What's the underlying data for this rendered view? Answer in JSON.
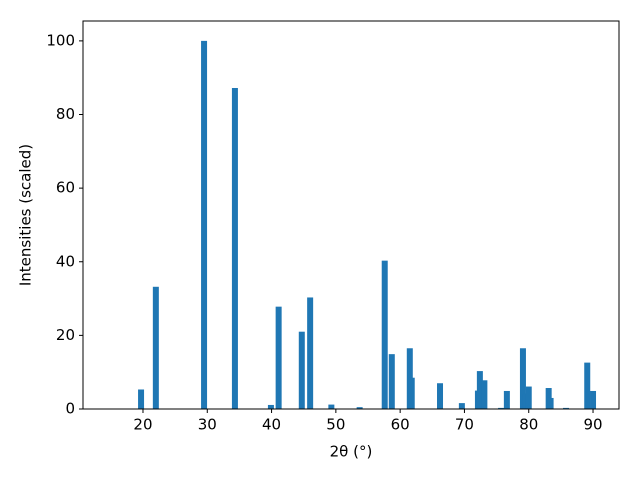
{
  "chart_data": {
    "type": "bar",
    "xlabel": "2θ (°)",
    "ylabel": "Intensities (scaled)",
    "color": "#1f77b4",
    "x": [
      19.7,
      22.0,
      29.5,
      34.3,
      39.9,
      41.1,
      44.7,
      46.0,
      49.3,
      53.7,
      57.6,
      58.7,
      61.5,
      61.8,
      66.2,
      69.6,
      72.1,
      72.4,
      73.1,
      75.7,
      76.6,
      79.1,
      79.5,
      80.0,
      83.1,
      83.4,
      85.8,
      89.1,
      90.0
    ],
    "values": [
      5.3,
      33.2,
      100,
      87.2,
      1.1,
      27.8,
      21.0,
      30.3,
      1.2,
      0.5,
      40.3,
      14.9,
      16.5,
      8.5,
      7.0,
      1.6,
      5.0,
      10.3,
      7.8,
      0.3,
      4.9,
      16.5,
      4.2,
      6.1,
      5.7,
      3.0,
      0.3,
      12.6,
      4.9
    ],
    "xlim": [
      10.67,
      94.04
    ],
    "xticks": [
      20,
      30,
      40,
      50,
      60,
      70,
      80,
      90
    ],
    "ylim": [
      0,
      105.4
    ],
    "yticks": [
      0,
      20,
      40,
      60,
      80,
      100
    ]
  }
}
